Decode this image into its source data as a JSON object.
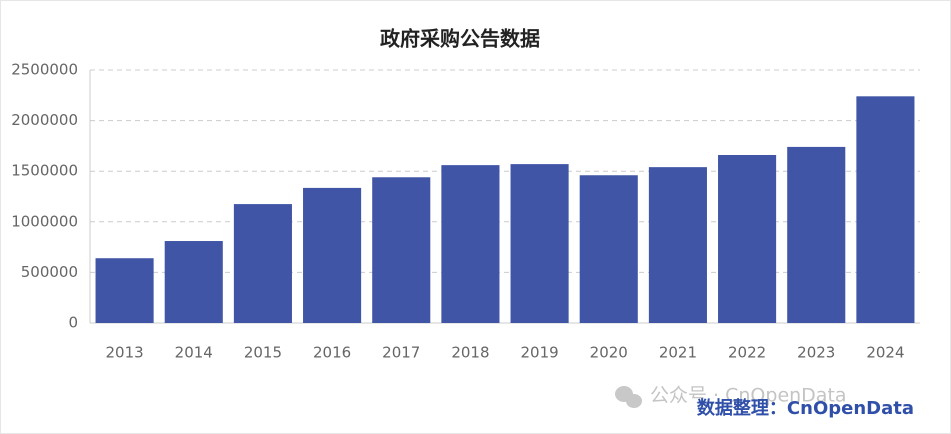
{
  "chart_data": {
    "type": "bar",
    "title": "政府采购公告数据",
    "categories": [
      "2013",
      "2014",
      "2015",
      "2016",
      "2017",
      "2018",
      "2019",
      "2020",
      "2021",
      "2022",
      "2023",
      "2024"
    ],
    "values": [
      640000,
      810000,
      1175000,
      1335000,
      1440000,
      1560000,
      1570000,
      1460000,
      1540000,
      1660000,
      1740000,
      2240000
    ],
    "color": "#4055a6",
    "ylim": [
      0,
      2500000
    ],
    "yticks": [
      0,
      500000,
      1000000,
      1500000,
      2000000,
      2500000
    ],
    "grid": true,
    "watermark": "公众号 · CnOpenData",
    "source": "数据整理：CnOpenData"
  }
}
